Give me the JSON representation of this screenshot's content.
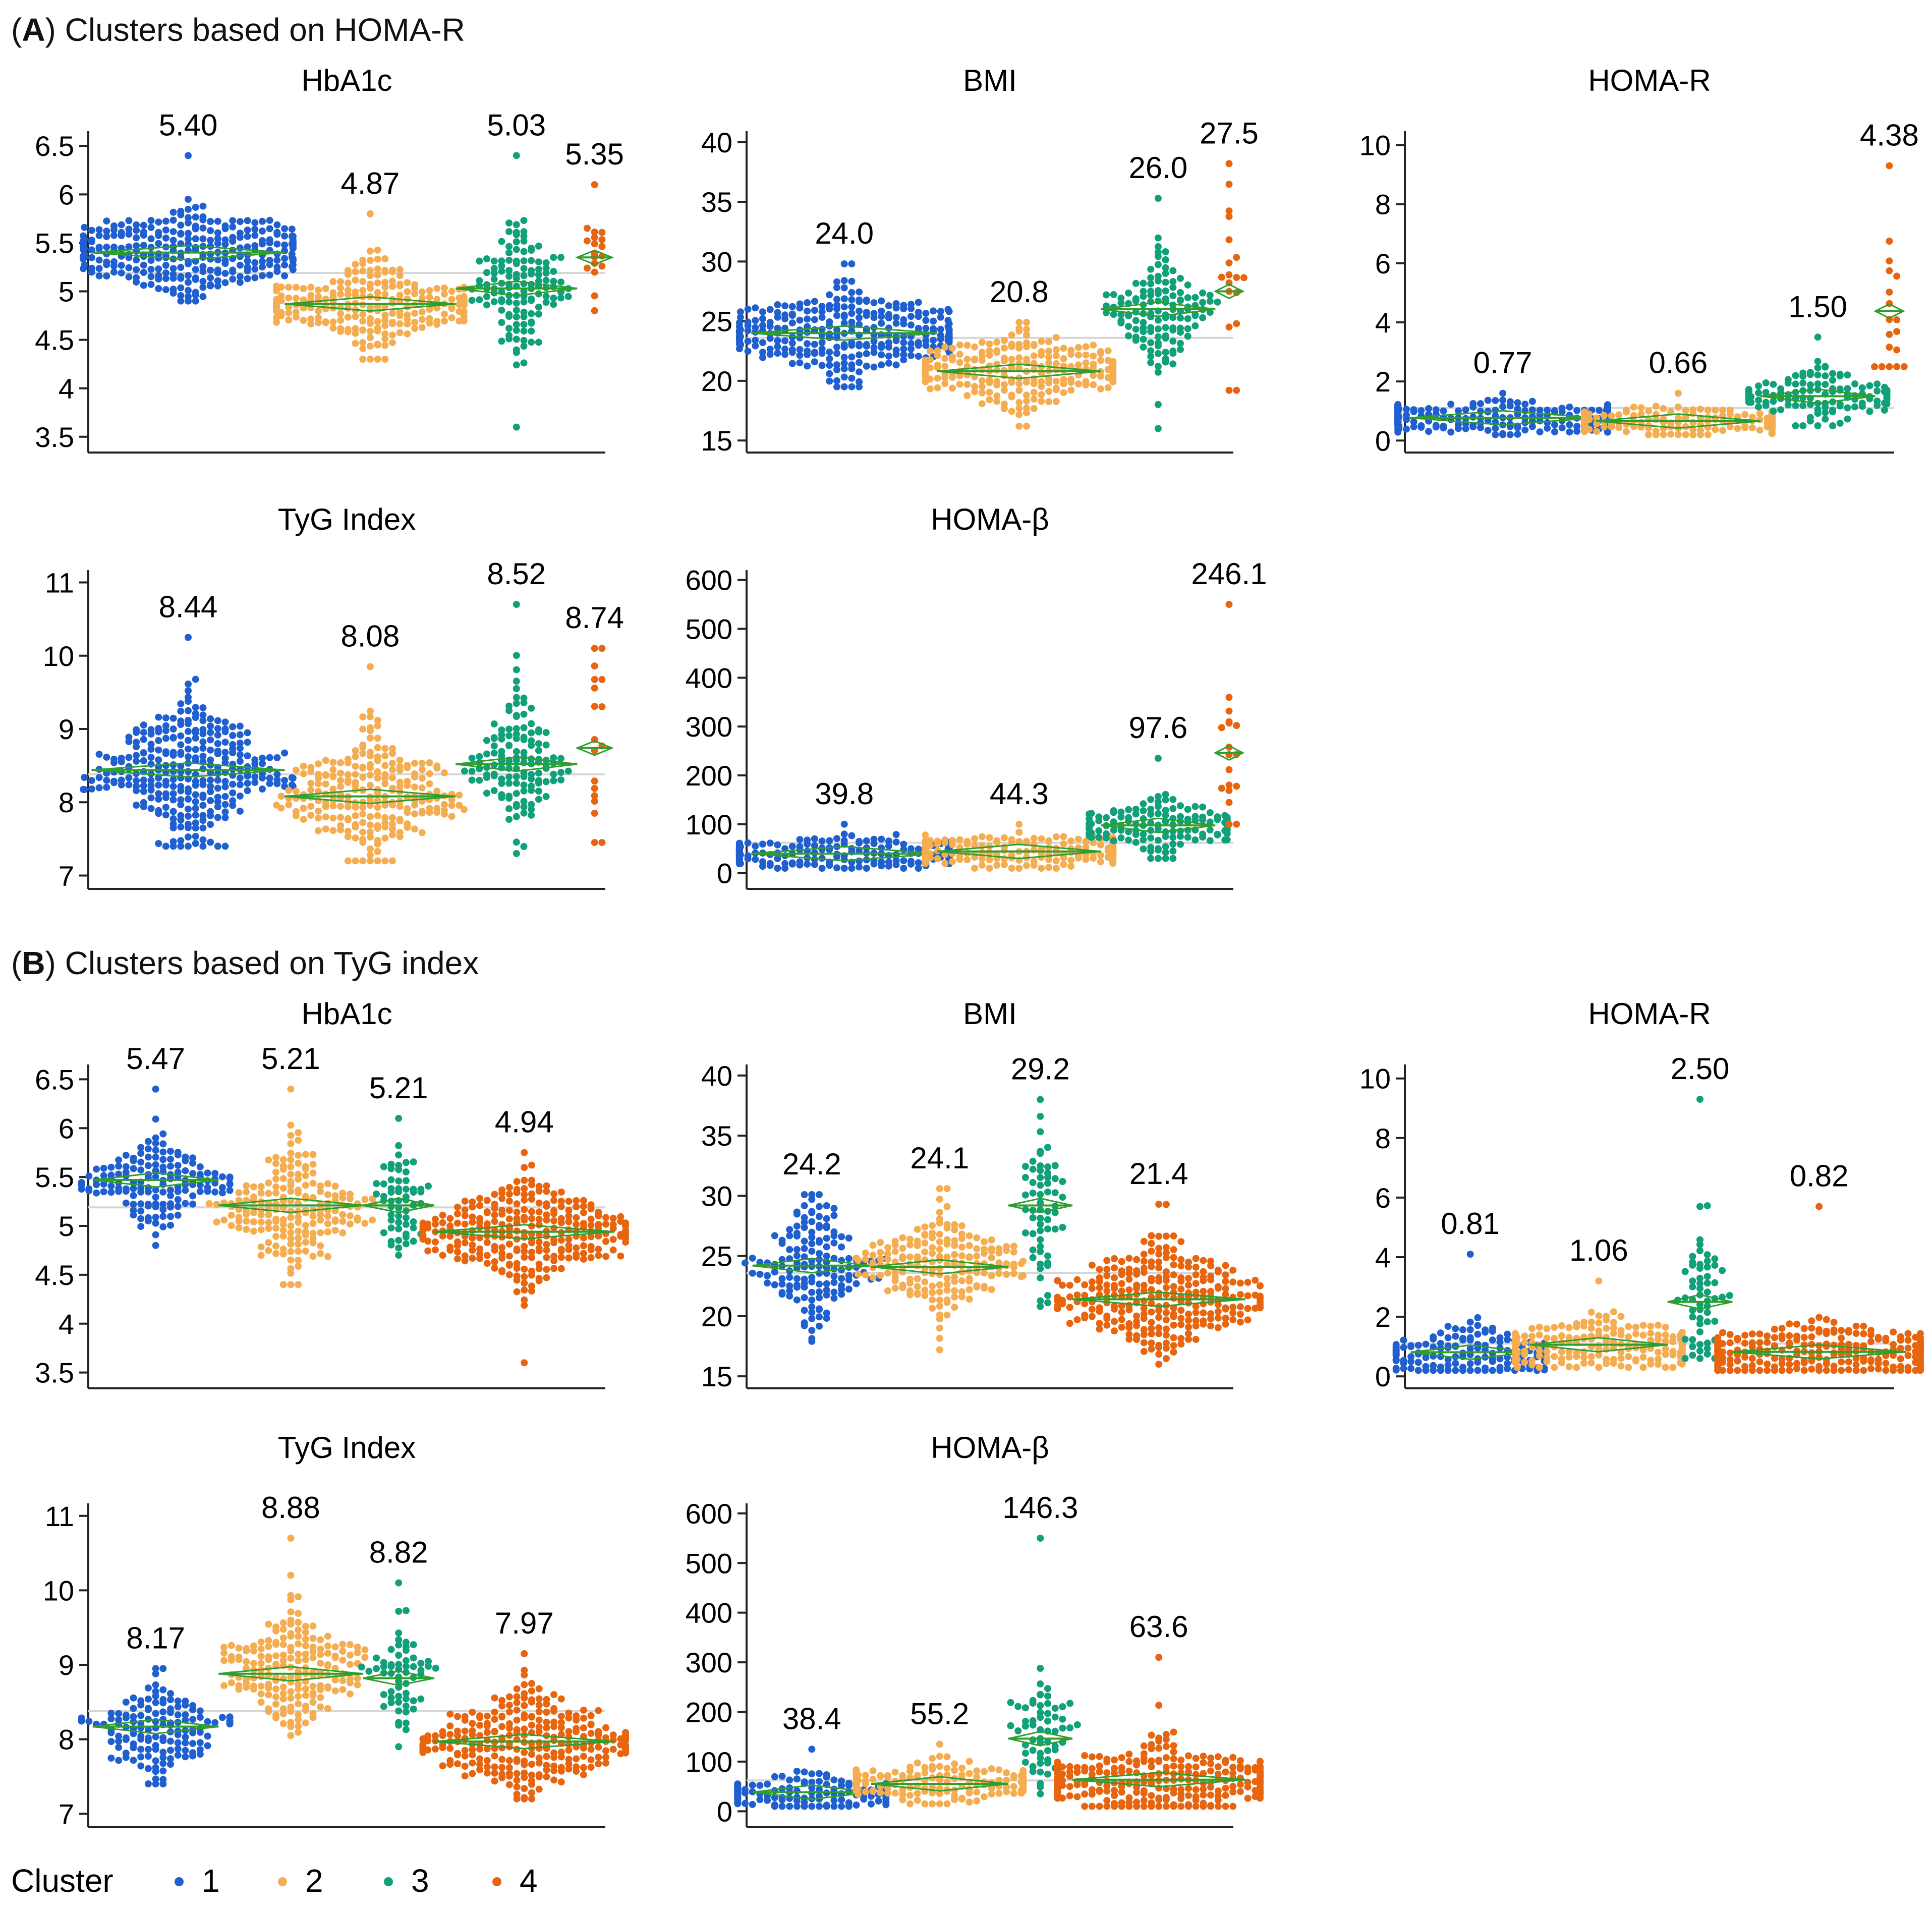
{
  "colors": {
    "c1": "#1f5fcf",
    "c2": "#f5ad52",
    "c3": "#10a07a",
    "c4": "#e8650f",
    "mean": "#2e9e2e",
    "ref": "#d6d6d6",
    "axis": "#222222"
  },
  "sections": [
    {
      "letter": "A",
      "open": "(",
      "close": ")",
      "title": "Clusters based on  HOMA-R"
    },
    {
      "letter": "B",
      "open": "(",
      "close": ")",
      "title": "Clusters based on TyG index"
    }
  ],
  "legend": {
    "title": "Cluster",
    "items": [
      "1",
      "2",
      "3",
      "4"
    ]
  },
  "chart_data": [
    {
      "type": "scatter",
      "section": "A",
      "title": "HbA1c",
      "ylim": [
        3.4,
        6.6
      ],
      "ticks": [
        3.5,
        4,
        4.5,
        5,
        5.5,
        6,
        6.5
      ],
      "tick_labels": [
        "3.5",
        "4",
        "4.5",
        "5",
        "5.5",
        "6",
        "6.5"
      ],
      "ref": 5.19,
      "groups": [
        {
          "cluster": 1,
          "mean": 5.4,
          "label": "5.40",
          "n": 300,
          "min": 4.9,
          "max": 6.4,
          "sd": 0.22
        },
        {
          "cluster": 2,
          "mean": 4.87,
          "label": "4.87",
          "n": 240,
          "min": 4.3,
          "max": 5.8,
          "sd": 0.2
        },
        {
          "cluster": 3,
          "mean": 5.03,
          "label": "5.03",
          "n": 130,
          "min": 3.6,
          "max": 6.4,
          "sd": 0.3
        },
        {
          "cluster": 4,
          "mean": 5.35,
          "label": "5.35",
          "n": 18,
          "min": 4.8,
          "max": 6.1,
          "sd": 0.25
        }
      ]
    },
    {
      "type": "scatter",
      "section": "A",
      "title": "BMI",
      "ylim": [
        14.5,
        40.5
      ],
      "ticks": [
        15,
        20,
        25,
        30,
        35,
        40
      ],
      "tick_labels": [
        "15",
        "20",
        "25",
        "30",
        "35",
        "40"
      ],
      "ref": 23.6,
      "groups": [
        {
          "cluster": 1,
          "mean": 24.0,
          "label": "24.0",
          "n": 300,
          "min": 19.5,
          "max": 29.8,
          "sd": 1.8
        },
        {
          "cluster": 2,
          "mean": 20.8,
          "label": "20.8",
          "n": 240,
          "min": 16.2,
          "max": 24.9,
          "sd": 1.5
        },
        {
          "cluster": 3,
          "mean": 26.0,
          "label": "26.0",
          "n": 130,
          "min": 16.0,
          "max": 35.3,
          "sd": 2.8
        },
        {
          "cluster": 4,
          "mean": 27.5,
          "label": "27.5",
          "n": 18,
          "min": 19.2,
          "max": 38.2,
          "sd": 5.0
        }
      ]
    },
    {
      "type": "scatter",
      "section": "A",
      "title": "HOMA-R",
      "ylim": [
        -0.2,
        10.3
      ],
      "ticks": [
        0,
        2,
        4,
        6,
        8,
        10
      ],
      "tick_labels": [
        "0",
        "2",
        "4",
        "6",
        "8",
        "10"
      ],
      "ref": 1.1,
      "groups": [
        {
          "cluster": 1,
          "mean": 0.77,
          "label": "0.77",
          "n": 300,
          "min": 0.2,
          "max": 1.6,
          "sd": 0.25
        },
        {
          "cluster": 2,
          "mean": 0.66,
          "label": "0.66",
          "n": 240,
          "min": 0.2,
          "max": 1.6,
          "sd": 0.22
        },
        {
          "cluster": 3,
          "mean": 1.5,
          "label": "1.50",
          "n": 130,
          "min": 0.5,
          "max": 3.5,
          "sd": 0.45
        },
        {
          "cluster": 4,
          "mean": 4.38,
          "label": "4.38",
          "n": 18,
          "min": 2.5,
          "max": 9.3,
          "sd": 1.5
        }
      ]
    },
    {
      "type": "scatter",
      "section": "A",
      "title": "TyG Index",
      "ylim": [
        6.9,
        11.1
      ],
      "ticks": [
        7,
        8,
        9,
        10,
        11
      ],
      "tick_labels": [
        "7",
        "8",
        "9",
        "10",
        "11"
      ],
      "ref": 8.38,
      "groups": [
        {
          "cluster": 1,
          "mean": 8.44,
          "label": "8.44",
          "n": 300,
          "min": 7.4,
          "max": 10.25,
          "sd": 0.45
        },
        {
          "cluster": 2,
          "mean": 8.08,
          "label": "8.08",
          "n": 240,
          "min": 7.2,
          "max": 9.85,
          "sd": 0.4
        },
        {
          "cluster": 3,
          "mean": 8.52,
          "label": "8.52",
          "n": 130,
          "min": 7.3,
          "max": 10.7,
          "sd": 0.5
        },
        {
          "cluster": 4,
          "mean": 8.74,
          "label": "8.74",
          "n": 18,
          "min": 7.45,
          "max": 10.1,
          "sd": 0.6
        }
      ]
    },
    {
      "type": "scatter",
      "section": "A",
      "title": "HOMA-β",
      "ylim": [
        -20,
        610
      ],
      "ticks": [
        0,
        100,
        200,
        300,
        400,
        500,
        600
      ],
      "tick_labels": [
        "0",
        "100",
        "200",
        "300",
        "400",
        "500",
        "600"
      ],
      "ref": 62,
      "groups": [
        {
          "cluster": 1,
          "mean": 39.8,
          "label": "39.8",
          "n": 300,
          "min": 10,
          "max": 100,
          "sd": 14
        },
        {
          "cluster": 2,
          "mean": 44.3,
          "label": "44.3",
          "n": 240,
          "min": 10,
          "max": 100,
          "sd": 15
        },
        {
          "cluster": 3,
          "mean": 97.6,
          "label": "97.6",
          "n": 130,
          "min": 30,
          "max": 235,
          "sd": 30
        },
        {
          "cluster": 4,
          "mean": 246.1,
          "label": "246.1",
          "n": 18,
          "min": 100,
          "max": 550,
          "sd": 100
        }
      ]
    },
    {
      "type": "scatter",
      "section": "B",
      "title": "HbA1c",
      "ylim": [
        3.4,
        6.6
      ],
      "ticks": [
        3.5,
        4,
        4.5,
        5,
        5.5,
        6,
        6.5
      ],
      "tick_labels": [
        "3.5",
        "4",
        "4.5",
        "5",
        "5.5",
        "6",
        "6.5"
      ],
      "ref": 5.19,
      "groups": [
        {
          "cluster": 1,
          "mean": 5.47,
          "label": "5.47",
          "n": 150,
          "min": 4.8,
          "max": 6.4,
          "sd": 0.22
        },
        {
          "cluster": 2,
          "mean": 5.21,
          "label": "5.21",
          "n": 190,
          "min": 4.4,
          "max": 6.4,
          "sd": 0.3
        },
        {
          "cluster": 3,
          "mean": 5.21,
          "label": "5.21",
          "n": 60,
          "min": 4.7,
          "max": 6.1,
          "sd": 0.28
        },
        {
          "cluster": 4,
          "mean": 4.94,
          "label": "4.94",
          "n": 280,
          "min": 3.6,
          "max": 5.75,
          "sd": 0.25
        }
      ]
    },
    {
      "type": "scatter",
      "section": "B",
      "title": "BMI",
      "ylim": [
        14.5,
        40.5
      ],
      "ticks": [
        15,
        20,
        25,
        30,
        35,
        40
      ],
      "tick_labels": [
        "15",
        "20",
        "25",
        "30",
        "35",
        "40"
      ],
      "ref": 23.6,
      "groups": [
        {
          "cluster": 1,
          "mean": 24.2,
          "label": "24.2",
          "n": 150,
          "min": 17.9,
          "max": 30.1,
          "sd": 2.4
        },
        {
          "cluster": 2,
          "mean": 24.1,
          "label": "24.1",
          "n": 190,
          "min": 17.2,
          "max": 30.6,
          "sd": 2.0
        },
        {
          "cluster": 3,
          "mean": 29.2,
          "label": "29.2",
          "n": 60,
          "min": 20.8,
          "max": 38.0,
          "sd": 3.5
        },
        {
          "cluster": 4,
          "mean": 21.4,
          "label": "21.4",
          "n": 280,
          "min": 16.0,
          "max": 29.3,
          "sd": 2.2
        }
      ]
    },
    {
      "type": "scatter",
      "section": "B",
      "title": "HOMA-R",
      "ylim": [
        -0.2,
        10.3
      ],
      "ticks": [
        0,
        2,
        4,
        6,
        8,
        10
      ],
      "tick_labels": [
        "0",
        "2",
        "4",
        "6",
        "8",
        "10"
      ],
      "ref": 1.1,
      "groups": [
        {
          "cluster": 1,
          "mean": 0.81,
          "label": "0.81",
          "n": 150,
          "min": 0.2,
          "max": 4.1,
          "sd": 0.45
        },
        {
          "cluster": 2,
          "mean": 1.06,
          "label": "1.06",
          "n": 190,
          "min": 0.3,
          "max": 3.2,
          "sd": 0.45
        },
        {
          "cluster": 3,
          "mean": 2.5,
          "label": "2.50",
          "n": 60,
          "min": 0.6,
          "max": 9.3,
          "sd": 1.3
        },
        {
          "cluster": 4,
          "mean": 0.82,
          "label": "0.82",
          "n": 280,
          "min": 0.2,
          "max": 5.7,
          "sd": 0.45
        }
      ]
    },
    {
      "type": "scatter",
      "section": "B",
      "title": "TyG Index",
      "ylim": [
        6.9,
        11.1
      ],
      "ticks": [
        7,
        8,
        9,
        10,
        11
      ],
      "tick_labels": [
        "7",
        "8",
        "9",
        "10",
        "11"
      ],
      "ref": 8.38,
      "groups": [
        {
          "cluster": 1,
          "mean": 8.17,
          "label": "8.17",
          "n": 150,
          "min": 7.4,
          "max": 8.95,
          "sd": 0.3
        },
        {
          "cluster": 2,
          "mean": 8.88,
          "label": "8.88",
          "n": 190,
          "min": 8.05,
          "max": 10.7,
          "sd": 0.4
        },
        {
          "cluster": 3,
          "mean": 8.82,
          "label": "8.82",
          "n": 60,
          "min": 7.9,
          "max": 10.1,
          "sd": 0.4
        },
        {
          "cluster": 4,
          "mean": 7.97,
          "label": "7.97",
          "n": 280,
          "min": 7.2,
          "max": 9.15,
          "sd": 0.3
        }
      ]
    },
    {
      "type": "scatter",
      "section": "B",
      "title": "HOMA-β",
      "ylim": [
        -20,
        610
      ],
      "ticks": [
        0,
        100,
        200,
        300,
        400,
        500,
        600
      ],
      "tick_labels": [
        "0",
        "100",
        "200",
        "300",
        "400",
        "500",
        "600"
      ],
      "ref": 62,
      "groups": [
        {
          "cluster": 1,
          "mean": 38.4,
          "label": "38.4",
          "n": 150,
          "min": 10,
          "max": 125,
          "sd": 18
        },
        {
          "cluster": 2,
          "mean": 55.2,
          "label": "55.2",
          "n": 190,
          "min": 15,
          "max": 135,
          "sd": 20
        },
        {
          "cluster": 3,
          "mean": 146.3,
          "label": "146.3",
          "n": 60,
          "min": 35,
          "max": 550,
          "sd": 60
        },
        {
          "cluster": 4,
          "mean": 63.6,
          "label": "63.6",
          "n": 280,
          "min": 10,
          "max": 310,
          "sd": 35
        }
      ]
    }
  ]
}
